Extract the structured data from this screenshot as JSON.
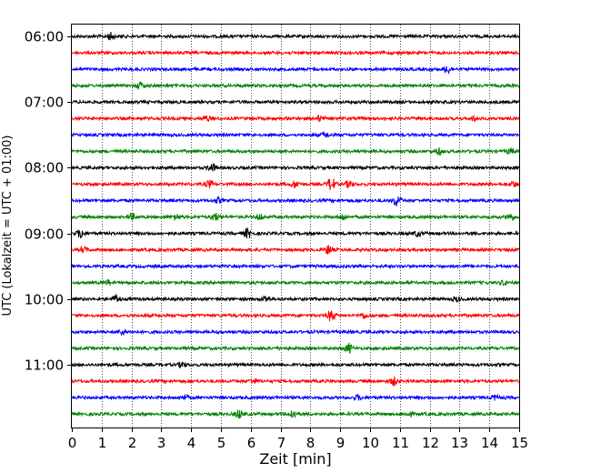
{
  "chart_data": {
    "type": "line",
    "title": "",
    "xlabel": "Zeit  [min]",
    "ylabel": "UTC (Lokalzeit = UTC + 01:00)",
    "xlim": [
      0,
      15
    ],
    "x_ticks": [
      0,
      1,
      2,
      3,
      4,
      5,
      6,
      7,
      8,
      9,
      10,
      11,
      12,
      13,
      14,
      15
    ],
    "x_tick_labels": [
      "0",
      "1",
      "2",
      "3",
      "4",
      "5",
      "6",
      "7",
      "8",
      "9",
      "10",
      "11",
      "12",
      "13",
      "14",
      "15"
    ],
    "y_tick_labels": [
      "06:00",
      "07:00",
      "08:00",
      "09:00",
      "10:00",
      "11:00"
    ],
    "grid": "vertical dotted",
    "trace_interval_min": 15,
    "start": "06:00",
    "colors": [
      "#000000",
      "#ff0000",
      "#0000ff",
      "#008000"
    ],
    "traces": [
      {
        "time": "06:00",
        "color": "#000000",
        "bursts": [
          [
            1.3,
            0.8
          ]
        ]
      },
      {
        "time": "06:15",
        "color": "#ff0000",
        "bursts": []
      },
      {
        "time": "06:30",
        "color": "#0000ff",
        "bursts": [
          [
            12.6,
            1.0
          ]
        ]
      },
      {
        "time": "06:45",
        "color": "#008000",
        "bursts": [
          [
            2.3,
            0.7
          ]
        ]
      },
      {
        "time": "07:00",
        "color": "#000000",
        "bursts": []
      },
      {
        "time": "07:15",
        "color": "#ff0000",
        "bursts": [
          [
            4.5,
            0.6
          ],
          [
            8.3,
            0.6
          ],
          [
            13.5,
            0.5
          ]
        ]
      },
      {
        "time": "07:30",
        "color": "#0000ff",
        "bursts": [
          [
            8.5,
            0.6
          ]
        ]
      },
      {
        "time": "07:45",
        "color": "#008000",
        "bursts": [
          [
            12.3,
            0.7
          ],
          [
            14.7,
            0.6
          ]
        ]
      },
      {
        "time": "08:00",
        "color": "#000000",
        "bursts": [
          [
            4.7,
            0.9
          ]
        ]
      },
      {
        "time": "08:15",
        "color": "#ff0000",
        "bursts": [
          [
            4.6,
            0.8
          ],
          [
            7.5,
            0.8
          ],
          [
            8.7,
            1.6
          ],
          [
            9.3,
            0.8
          ],
          [
            14.8,
            0.6
          ]
        ]
      },
      {
        "time": "08:30",
        "color": "#0000ff",
        "bursts": [
          [
            4.9,
            0.6
          ],
          [
            10.9,
            1.3
          ]
        ]
      },
      {
        "time": "08:45",
        "color": "#008000",
        "bursts": [
          [
            2.0,
            0.7
          ],
          [
            3.5,
            0.7
          ],
          [
            4.8,
            0.9
          ],
          [
            6.3,
            0.6
          ],
          [
            9.1,
            0.7
          ],
          [
            14.7,
            0.8
          ]
        ]
      },
      {
        "time": "09:00",
        "color": "#000000",
        "bursts": [
          [
            0.3,
            1.0
          ],
          [
            5.9,
            1.1
          ],
          [
            11.6,
            0.6
          ]
        ]
      },
      {
        "time": "09:15",
        "color": "#ff0000",
        "bursts": [
          [
            0.4,
            0.6
          ],
          [
            8.6,
            1.0
          ]
        ]
      },
      {
        "time": "09:30",
        "color": "#0000ff",
        "bursts": []
      },
      {
        "time": "09:45",
        "color": "#008000",
        "bursts": [
          [
            1.2,
            0.5
          ],
          [
            14.5,
            0.5
          ]
        ]
      },
      {
        "time": "10:00",
        "color": "#000000",
        "bursts": [
          [
            1.5,
            0.9
          ],
          [
            6.5,
            0.7
          ],
          [
            12.9,
            0.5
          ]
        ]
      },
      {
        "time": "10:15",
        "color": "#ff0000",
        "bursts": [
          [
            8.7,
            1.3
          ],
          [
            9.8,
            0.6
          ]
        ]
      },
      {
        "time": "10:30",
        "color": "#0000ff",
        "bursts": [
          [
            1.7,
            0.6
          ]
        ]
      },
      {
        "time": "10:45",
        "color": "#008000",
        "bursts": [
          [
            9.3,
            1.1
          ]
        ]
      },
      {
        "time": "11:00",
        "color": "#000000",
        "bursts": [
          [
            3.7,
            0.6
          ]
        ]
      },
      {
        "time": "11:15",
        "color": "#ff0000",
        "bursts": [
          [
            10.8,
            0.9
          ],
          [
            6.1,
            0.5
          ]
        ]
      },
      {
        "time": "11:30",
        "color": "#0000ff",
        "bursts": [
          [
            3.8,
            0.5
          ],
          [
            9.6,
            0.5
          ],
          [
            14.2,
            0.5
          ]
        ]
      },
      {
        "time": "11:45",
        "color": "#008000",
        "bursts": [
          [
            5.6,
            1.0
          ],
          [
            7.4,
            1.0
          ],
          [
            11.3,
            0.5
          ]
        ]
      }
    ]
  }
}
